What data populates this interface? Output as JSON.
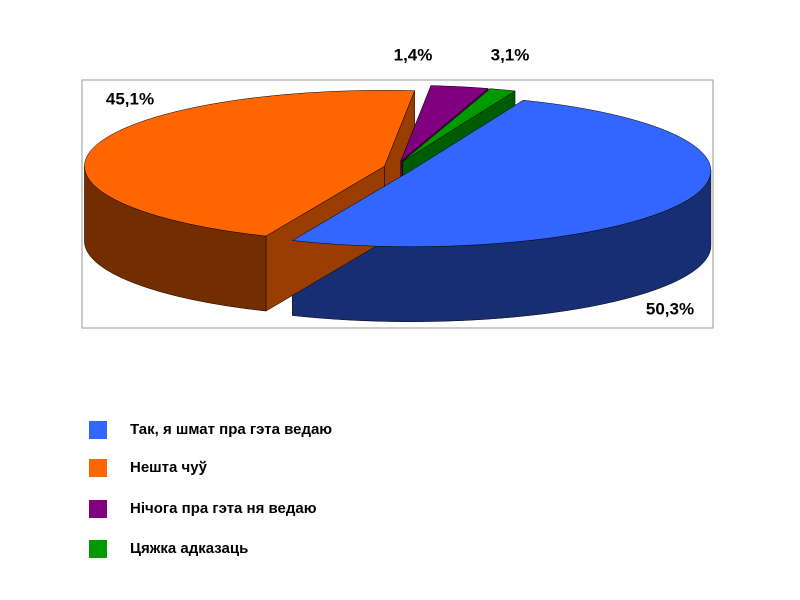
{
  "chart_data": {
    "type": "pie",
    "three_d": true,
    "categories": [
      "Так, я шмат пра гэта ведаю",
      "Нешта чуў",
      "Нічога пра гэта ня ведаю",
      "Цяжка адказаць"
    ],
    "values": [
      50.3,
      45.1,
      3.1,
      1.4
    ],
    "value_labels": [
      "50,3%",
      "45,1%",
      "3,1%",
      "1,4%"
    ],
    "colors": [
      "#3366ff",
      "#ff6600",
      "#800080",
      "#009900"
    ]
  }
}
